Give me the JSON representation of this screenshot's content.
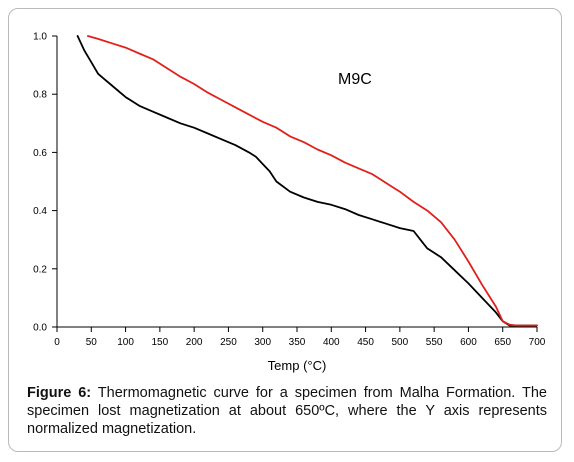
{
  "chart_data": {
    "type": "line",
    "title": "",
    "annotation": "M9C",
    "xlabel": "Temp (°C)",
    "ylabel": "",
    "xlim": [
      0,
      700
    ],
    "ylim": [
      0.0,
      1.0
    ],
    "x_ticks": [
      0,
      50,
      100,
      150,
      200,
      250,
      300,
      350,
      400,
      450,
      500,
      550,
      600,
      650,
      700
    ],
    "y_ticks": [
      0.0,
      0.2,
      0.4,
      0.6,
      0.8,
      1.0
    ],
    "y_tick_labels": [
      "0.0",
      "0.2",
      "0.4",
      "0.6",
      "0.8",
      "1.0"
    ],
    "grid": false,
    "series": [
      {
        "color": "#000000",
        "x": [
          30,
          40,
          50,
          60,
          70,
          80,
          100,
          120,
          140,
          160,
          180,
          200,
          220,
          240,
          260,
          280,
          290,
          300,
          310,
          320,
          340,
          360,
          380,
          400,
          420,
          440,
          460,
          480,
          500,
          520,
          530,
          540,
          560,
          580,
          600,
          620,
          640,
          650,
          660,
          700
        ],
        "y": [
          1.0,
          0.95,
          0.91,
          0.87,
          0.85,
          0.83,
          0.79,
          0.76,
          0.74,
          0.72,
          0.7,
          0.685,
          0.665,
          0.645,
          0.625,
          0.6,
          0.585,
          0.56,
          0.535,
          0.5,
          0.465,
          0.445,
          0.43,
          0.42,
          0.405,
          0.385,
          0.37,
          0.355,
          0.34,
          0.33,
          0.3,
          0.27,
          0.24,
          0.195,
          0.15,
          0.1,
          0.05,
          0.02,
          0.005,
          0.005
        ]
      },
      {
        "color": "#e0201a",
        "x": [
          45,
          60,
          80,
          100,
          120,
          140,
          160,
          180,
          200,
          220,
          240,
          260,
          280,
          300,
          320,
          340,
          360,
          380,
          400,
          420,
          440,
          460,
          480,
          500,
          520,
          540,
          560,
          580,
          600,
          620,
          640,
          650,
          660,
          670,
          700
        ],
        "y": [
          1.0,
          0.99,
          0.975,
          0.96,
          0.94,
          0.92,
          0.89,
          0.86,
          0.835,
          0.805,
          0.78,
          0.755,
          0.73,
          0.705,
          0.685,
          0.655,
          0.635,
          0.61,
          0.59,
          0.565,
          0.545,
          0.525,
          0.495,
          0.465,
          0.43,
          0.4,
          0.36,
          0.3,
          0.225,
          0.145,
          0.07,
          0.02,
          0.008,
          0.005,
          0.005
        ]
      }
    ]
  },
  "caption": {
    "label": "Figure 6:",
    "text": " Thermomagnetic curve for a specimen from Malha Formation. The specimen lost magnetization at about 650ºC, where the Y axis represents normalized magnetization."
  }
}
